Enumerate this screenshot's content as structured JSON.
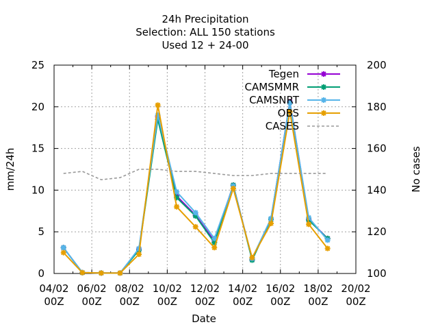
{
  "chart_data": {
    "type": "line",
    "title_lines": [
      "24h Precipitation",
      "Selection: ALL    150 stations",
      "Used  12 + 24-00"
    ],
    "xlabel": "Date",
    "ylabel": "mm/24h",
    "y2label": "No cases",
    "xlim": [
      0,
      16
    ],
    "ylim": [
      0,
      25
    ],
    "y2lim": [
      100,
      200
    ],
    "xticks": [
      {
        "value": 0,
        "label": [
          "04/02",
          "00Z"
        ]
      },
      {
        "value": 2,
        "label": [
          "06/02",
          "00Z"
        ]
      },
      {
        "value": 4,
        "label": [
          "08/02",
          "00Z"
        ]
      },
      {
        "value": 6,
        "label": [
          "10/02",
          "00Z"
        ]
      },
      {
        "value": 8,
        "label": [
          "12/02",
          "00Z"
        ]
      },
      {
        "value": 10,
        "label": [
          "14/02",
          "00Z"
        ]
      },
      {
        "value": 12,
        "label": [
          "16/02",
          "00Z"
        ]
      },
      {
        "value": 14,
        "label": [
          "18/02",
          "00Z"
        ]
      },
      {
        "value": 16,
        "label": [
          "20/02",
          "00Z"
        ]
      }
    ],
    "yticks": [
      0,
      5,
      10,
      15,
      20,
      25
    ],
    "y2ticks": [
      100,
      120,
      140,
      160,
      180,
      200
    ],
    "grid": true,
    "legend_position": "top-right",
    "x": [
      0.5,
      1.5,
      2.5,
      3.5,
      4.5,
      5.5,
      6.5,
      7.5,
      8.5,
      9.5,
      10.5,
      11.5,
      12.5,
      13.5,
      14.5
    ],
    "series": [
      {
        "name": "Tegen",
        "color": "#9400d3",
        "axis": "y",
        "marker": true,
        "values": [
          3.1,
          0.1,
          0.05,
          0.05,
          2.9,
          18.8,
          9.3,
          7.0,
          3.9,
          10.6,
          1.7,
          6.5,
          20.6,
          6.5,
          4.2
        ]
      },
      {
        "name": "CAMSMMR",
        "color": "#009e73",
        "axis": "y",
        "marker": true,
        "values": [
          3.1,
          0.1,
          0.05,
          0.05,
          2.8,
          18.5,
          9.1,
          6.9,
          3.7,
          10.6,
          1.6,
          6.5,
          20.5,
          6.4,
          4.2
        ]
      },
      {
        "name": "CAMSNRT",
        "color": "#56b4e9",
        "axis": "y",
        "marker": true,
        "values": [
          3.1,
          0.1,
          0.05,
          0.05,
          3.0,
          19.0,
          9.8,
          7.3,
          4.2,
          10.5,
          1.8,
          6.6,
          20.5,
          6.7,
          4.0
        ]
      },
      {
        "name": "OBS",
        "color": "#e69f00",
        "axis": "y",
        "marker": true,
        "values": [
          2.5,
          0.1,
          0.05,
          0.05,
          2.3,
          20.2,
          8.0,
          5.6,
          3.1,
          10.2,
          1.9,
          6.0,
          19.4,
          5.9,
          3.0
        ]
      },
      {
        "name": "CASES",
        "color": "#999999",
        "axis": "y2",
        "marker": false,
        "dashed": true,
        "values": [
          148,
          149,
          145,
          146,
          150,
          150,
          149,
          149,
          148,
          147,
          147,
          148,
          148,
          148,
          148
        ]
      }
    ]
  }
}
